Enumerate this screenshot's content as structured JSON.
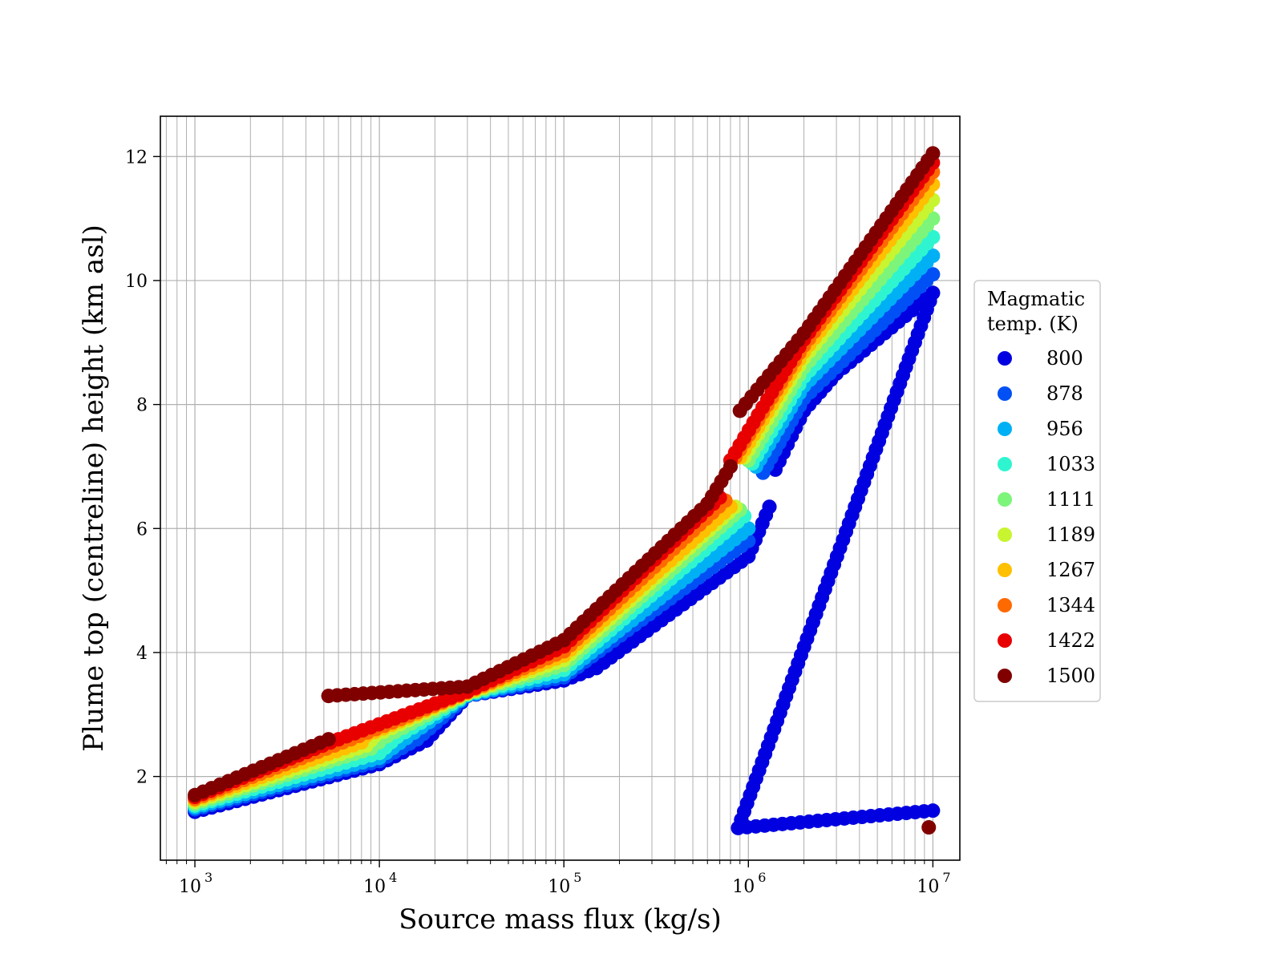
{
  "chart_data": {
    "type": "scatter",
    "title": "",
    "xlabel": "Source mass flux (kg/s)",
    "ylabel": "Plume top (centreline) height (km asl)",
    "xscale": "log",
    "xlim": [
      650,
      14000000
    ],
    "ylim": [
      0.65,
      12.65
    ],
    "grid": true,
    "x_tick_labels": [
      "10",
      "10",
      "10",
      "10",
      "10"
    ],
    "x_tick_exponents": [
      "3",
      "4",
      "5",
      "6",
      "7"
    ],
    "x_tick_values": [
      1000,
      10000,
      100000,
      1000000,
      10000000
    ],
    "y_tick_labels": [
      "2",
      "4",
      "6",
      "8",
      "10",
      "12"
    ],
    "y_tick_values": [
      2,
      4,
      6,
      8,
      10,
      12
    ],
    "legend": {
      "title_lines": [
        "Magmatic",
        "temp. (K)"
      ],
      "position": "right-center-outside"
    },
    "colors": [
      "#0000e0",
      "#0050f5",
      "#00b0f5",
      "#2ef5d0",
      "#7cf57a",
      "#c8f530",
      "#ffc000",
      "#ff6a00",
      "#e80000",
      "#800000"
    ],
    "series": [
      {
        "name": "800",
        "x_range": [
          1000,
          10000000
        ],
        "points": [
          [
            1000,
            1.43
          ],
          [
            10000,
            2.2
          ],
          [
            18000,
            2.58
          ],
          [
            18000,
            2.58
          ],
          [
            30000,
            3.3
          ],
          [
            100000,
            3.55
          ],
          [
            150000,
            3.75
          ],
          [
            1000000,
            5.55
          ],
          [
            1300000,
            6.35
          ],
          [
            1400000,
            6.95
          ],
          [
            2000000,
            7.9
          ],
          [
            3000000,
            8.5
          ],
          [
            10000000,
            9.8
          ],
          [
            880000,
            1.17
          ],
          [
            10000000,
            1.45
          ]
        ]
      },
      {
        "name": "878",
        "x_range": [
          1000,
          10000000
        ],
        "points": [
          [
            1000,
            1.47
          ],
          [
            10000,
            2.25
          ],
          [
            16000,
            2.6
          ],
          [
            30000,
            3.3
          ],
          [
            100000,
            3.6
          ],
          [
            1000000,
            5.8
          ],
          [
            1200000,
            6.9
          ],
          [
            2000000,
            8.1
          ],
          [
            10000000,
            10.1
          ]
        ]
      },
      {
        "name": "956",
        "x_range": [
          1000,
          10000000
        ],
        "points": [
          [
            1000,
            1.5
          ],
          [
            10000,
            2.3
          ],
          [
            14000,
            2.62
          ],
          [
            30000,
            3.31
          ],
          [
            100000,
            3.65
          ],
          [
            1000000,
            6.0
          ],
          [
            1100000,
            7.0
          ],
          [
            2000000,
            8.3
          ],
          [
            10000000,
            10.4
          ]
        ]
      },
      {
        "name": "1033",
        "x_range": [
          1000,
          10000000
        ],
        "points": [
          [
            1000,
            1.53
          ],
          [
            10000,
            2.38
          ],
          [
            12500,
            2.64
          ],
          [
            30000,
            3.32
          ],
          [
            100000,
            3.72
          ],
          [
            950000,
            6.2
          ],
          [
            1050000,
            7.05
          ],
          [
            2000000,
            8.45
          ],
          [
            10000000,
            10.7
          ]
        ]
      },
      {
        "name": "1111",
        "x_range": [
          1000,
          10000000
        ],
        "points": [
          [
            1000,
            1.56
          ],
          [
            9000,
            2.45
          ],
          [
            11000,
            2.65
          ],
          [
            30000,
            3.33
          ],
          [
            100000,
            3.8
          ],
          [
            900000,
            6.3
          ],
          [
            1000000,
            7.1
          ],
          [
            2000000,
            8.6
          ],
          [
            10000000,
            11.0
          ]
        ]
      },
      {
        "name": "1189",
        "x_range": [
          1000,
          10000000
        ],
        "points": [
          [
            1000,
            1.59
          ],
          [
            8500,
            2.5
          ],
          [
            9500,
            2.66
          ],
          [
            30000,
            3.34
          ],
          [
            100000,
            3.88
          ],
          [
            850000,
            6.35
          ],
          [
            950000,
            7.15
          ],
          [
            2000000,
            8.75
          ],
          [
            10000000,
            11.3
          ]
        ]
      },
      {
        "name": "1267",
        "x_range": [
          1000,
          10000000
        ],
        "points": [
          [
            1000,
            1.62
          ],
          [
            8000,
            2.55
          ],
          [
            8500,
            2.66
          ],
          [
            30000,
            3.35
          ],
          [
            100000,
            3.95
          ],
          [
            800000,
            6.35
          ],
          [
            900000,
            7.15
          ],
          [
            2000000,
            8.85
          ],
          [
            10000000,
            11.55
          ]
        ]
      },
      {
        "name": "1344",
        "x_range": [
          1000,
          10000000
        ],
        "points": [
          [
            1000,
            1.64
          ],
          [
            7000,
            2.6
          ],
          [
            30000,
            3.36
          ],
          [
            100000,
            4.02
          ],
          [
            750000,
            6.45
          ],
          [
            850000,
            7.15
          ],
          [
            2000000,
            8.95
          ],
          [
            10000000,
            11.75
          ]
        ]
      },
      {
        "name": "1422",
        "x_range": [
          1000,
          10000000
        ],
        "points": [
          [
            1000,
            1.67
          ],
          [
            6000,
            2.6
          ],
          [
            30000,
            3.37
          ],
          [
            100000,
            4.1
          ],
          [
            700000,
            6.5
          ],
          [
            800000,
            7.1
          ],
          [
            2000000,
            9.05
          ],
          [
            10000000,
            11.9
          ]
        ]
      },
      {
        "name": "1500",
        "x_range": [
          1000,
          10000000
        ],
        "points": [
          [
            1000,
            1.7
          ],
          [
            5300,
            2.6
          ],
          [
            5300,
            3.3
          ],
          [
            30000,
            3.45
          ],
          [
            100000,
            4.2
          ],
          [
            600000,
            6.4
          ],
          [
            800000,
            7.0
          ],
          [
            900000,
            7.9
          ],
          [
            2000000,
            9.15
          ],
          [
            10000000,
            12.05
          ],
          [
            9500000,
            1.18
          ]
        ]
      }
    ]
  }
}
